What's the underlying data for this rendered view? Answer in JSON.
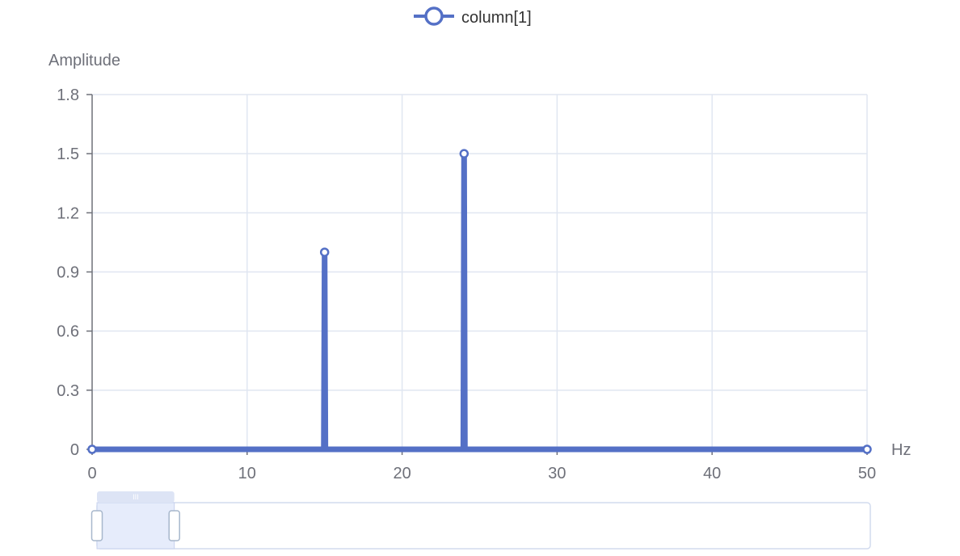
{
  "chart_data": {
    "type": "line",
    "title": "",
    "xlabel": "Hz",
    "ylabel": "Amplitude",
    "xlim": [
      0,
      50
    ],
    "ylim": [
      0,
      1.8
    ],
    "x_ticks": [
      "0",
      "10",
      "20",
      "30",
      "40",
      "50"
    ],
    "y_ticks": [
      "0",
      "0.3",
      "0.6",
      "0.9",
      "1.2",
      "1.5",
      "1.8"
    ],
    "grid": true,
    "legend_position": "top-center",
    "series": [
      {
        "name": "column[1]",
        "color": "#5470c6",
        "points": [
          {
            "x": 0,
            "y": 0
          },
          {
            "x": 14.95,
            "y": 0
          },
          {
            "x": 15,
            "y": 1.0
          },
          {
            "x": 15.05,
            "y": 0
          },
          {
            "x": 23.95,
            "y": 0
          },
          {
            "x": 24,
            "y": 1.5
          },
          {
            "x": 24.05,
            "y": 0
          },
          {
            "x": 50,
            "y": 0
          }
        ],
        "markers": [
          {
            "x": 0,
            "y": 0
          },
          {
            "x": 15,
            "y": 1.0
          },
          {
            "x": 24,
            "y": 1.5
          },
          {
            "x": 50,
            "y": 0
          }
        ]
      }
    ],
    "data_zoom": {
      "start_percent": 0,
      "end_percent": 10
    }
  }
}
